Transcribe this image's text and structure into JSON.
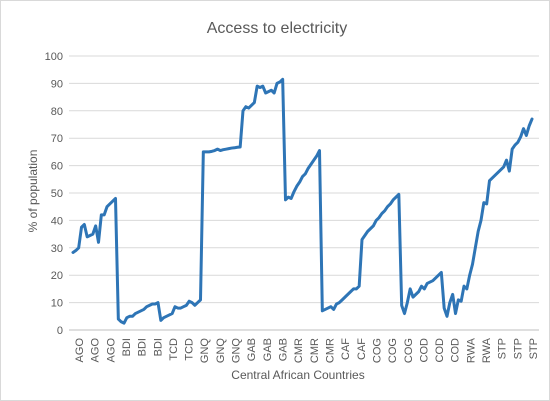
{
  "chart_data": {
    "type": "line",
    "title": "Access to electricity",
    "xlabel": "Central African Countries",
    "ylabel": "% of population",
    "ylim": [
      0,
      100
    ],
    "yticks": [
      0,
      10,
      20,
      30,
      40,
      50,
      60,
      70,
      80,
      90,
      100
    ],
    "grid": "horizontal",
    "legend": "none",
    "line_color": "#2E75B6",
    "tick_labels": [
      "AGO",
      "AGO",
      "AGO",
      "BDI",
      "BDI",
      "BDI",
      "TCD",
      "TCD",
      "GNQ",
      "GNQ",
      "GNQ",
      "GAB",
      "GAB",
      "GAB",
      "CMR",
      "CMR",
      "CMR",
      "CAF",
      "CAF",
      "COG",
      "COG",
      "COG",
      "COD",
      "COD",
      "COD",
      "RWA",
      "RWA",
      "STP",
      "STP",
      "STP"
    ],
    "series": [
      {
        "values": [
          28.3,
          29.0,
          30.0,
          37.5,
          38.5,
          34.0,
          34.5,
          35.0,
          38.0,
          32.0,
          42.0,
          42.0,
          45.0,
          46.0,
          47.0,
          48.0,
          4.0,
          3.0,
          2.5,
          4.5,
          5.0,
          5.0,
          6.0,
          6.5,
          7.0,
          7.5,
          8.5,
          9.0,
          9.5,
          9.5,
          10.0,
          3.5,
          4.5,
          5.0,
          5.5,
          6.0,
          8.5,
          8.0,
          8.0,
          8.5,
          9.0,
          10.5,
          10.0,
          9.0,
          10.0,
          11.0,
          65.0,
          65.0,
          65.0,
          65.2,
          65.5,
          66.0,
          65.5,
          65.8,
          66.0,
          66.2,
          66.4,
          66.5,
          66.7,
          66.8,
          80.0,
          81.5,
          81.0,
          82.0,
          83.0,
          89.0,
          88.5,
          89.0,
          86.5,
          87.0,
          87.5,
          86.5,
          90.0,
          90.5,
          91.5,
          47.5,
          48.5,
          48.0,
          50.5,
          52.5,
          54.0,
          56.0,
          57.0,
          59.0,
          60.5,
          62.0,
          63.5,
          65.5,
          7.0,
          7.5,
          8.0,
          8.5,
          7.5,
          9.5,
          10.0,
          11.0,
          12.0,
          13.0,
          14.0,
          15.0,
          15.0,
          16.0,
          33.0,
          34.5,
          36.0,
          37.0,
          38.0,
          40.0,
          41.0,
          42.5,
          43.5,
          45.0,
          46.0,
          47.5,
          48.5,
          49.5,
          9.0,
          6.0,
          10.0,
          15.0,
          12.0,
          13.0,
          14.0,
          16.0,
          15.0,
          17.0,
          17.5,
          18.0,
          19.0,
          20.0,
          21.0,
          8.0,
          5.0,
          10.0,
          13.0,
          6.0,
          11.0,
          10.5,
          16.0,
          15.0,
          20.0,
          24.0,
          30.0,
          36.0,
          40.0,
          46.5,
          46.0,
          54.5,
          55.5,
          56.5,
          57.5,
          58.5,
          59.5,
          62.0,
          58.0,
          66.0,
          67.5,
          68.5,
          70.5,
          73.5,
          71.0,
          74.5,
          77.0
        ]
      }
    ]
  }
}
